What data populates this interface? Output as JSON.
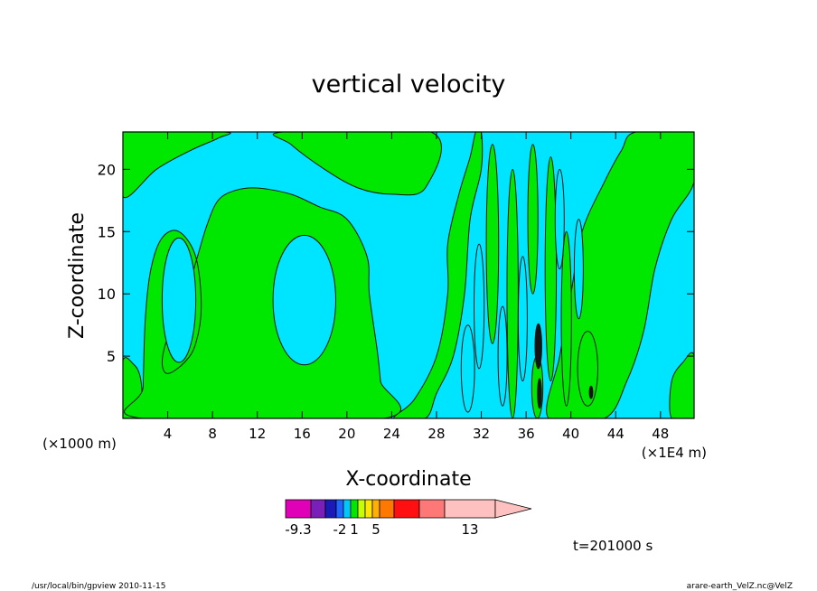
{
  "chart_data": {
    "type": "heatmap",
    "title": "vertical velocity",
    "xlabel": "X-coordinate",
    "ylabel": "Z-coordinate",
    "x_unit_left": "(×1000 m)",
    "x_unit_right": "(×1E4 m)",
    "xlim": [
      0,
      51
    ],
    "ylim": [
      0,
      23
    ],
    "x_ticks": [
      {
        "value": 4,
        "label": "4"
      },
      {
        "value": 8,
        "label": "8"
      },
      {
        "value": 12,
        "label": "12"
      },
      {
        "value": 16,
        "label": "16"
      },
      {
        "value": 20,
        "label": "20"
      },
      {
        "value": 24,
        "label": "24"
      },
      {
        "value": 28,
        "label": "28"
      },
      {
        "value": 32,
        "label": "32"
      },
      {
        "value": 36,
        "label": "36"
      },
      {
        "value": 40,
        "label": "40"
      },
      {
        "value": 44,
        "label": "44"
      },
      {
        "value": 48,
        "label": "48"
      }
    ],
    "y_ticks": [
      {
        "value": 5,
        "label": "5"
      },
      {
        "value": 10,
        "label": "10"
      },
      {
        "value": 15,
        "label": "15"
      },
      {
        "value": 20,
        "label": "20"
      }
    ],
    "colors": {
      "cyan": "#00e5ff",
      "green": "#00e800",
      "dark": "#141414",
      "line": "#111111"
    },
    "background_region": "cyan",
    "regions": [
      {
        "name": "green-left-top",
        "color": "green",
        "points": [
          [
            0,
            17.8
          ],
          [
            3,
            20
          ],
          [
            6,
            21.5
          ],
          [
            8.5,
            22.5
          ],
          [
            9,
            23
          ],
          [
            0,
            23
          ]
        ]
      },
      {
        "name": "green-top-mid",
        "color": "green",
        "points": [
          [
            14.3,
            23
          ],
          [
            15,
            22
          ],
          [
            18,
            20
          ],
          [
            21,
            18.5
          ],
          [
            24,
            18
          ],
          [
            27,
            18.5
          ],
          [
            27.5,
            23
          ]
        ]
      },
      {
        "name": "green-left-arm",
        "color": "green",
        "points": [
          [
            0,
            4.6
          ],
          [
            1,
            4.3
          ],
          [
            1.5,
            3.5
          ],
          [
            1.7,
            2
          ],
          [
            1.6,
            0
          ],
          [
            0,
            0
          ]
        ]
      },
      {
        "name": "green-main",
        "color": "green",
        "points": [
          [
            1.7,
            0
          ],
          [
            1.8,
            2.5
          ],
          [
            2,
            8
          ],
          [
            2.5,
            12
          ],
          [
            3.5,
            14.5
          ],
          [
            5,
            15
          ],
          [
            6.5,
            13
          ],
          [
            7,
            9
          ],
          [
            6.5,
            6
          ],
          [
            5.5,
            4.5
          ],
          [
            4,
            3.6
          ],
          [
            3.5,
            4.5
          ],
          [
            4,
            6.5
          ],
          [
            5.5,
            9.5
          ],
          [
            6.5,
            12.5
          ],
          [
            7.5,
            15.5
          ],
          [
            8.5,
            17.5
          ],
          [
            10,
            18.3
          ],
          [
            12,
            18.5
          ],
          [
            15,
            18
          ],
          [
            17.5,
            17
          ],
          [
            20,
            16
          ],
          [
            21.8,
            13
          ],
          [
            22,
            10
          ],
          [
            22.7,
            5.5
          ],
          [
            23,
            3
          ],
          [
            23.3,
            0
          ]
        ]
      },
      {
        "name": "green-right-band",
        "color": "green",
        "points": [
          [
            24.2,
            0
          ],
          [
            26,
            1.5
          ],
          [
            28,
            5
          ],
          [
            29,
            10
          ],
          [
            29,
            14
          ],
          [
            30,
            18
          ],
          [
            31,
            21
          ],
          [
            31.5,
            23
          ],
          [
            32,
            23
          ],
          [
            32,
            20
          ],
          [
            31,
            16
          ],
          [
            30.5,
            10
          ],
          [
            29.5,
            5
          ],
          [
            28,
            2
          ],
          [
            27,
            0
          ]
        ]
      },
      {
        "name": "green-right-wide",
        "color": "green",
        "points": [
          [
            38,
            0
          ],
          [
            39,
            5
          ],
          [
            40,
            10
          ],
          [
            41,
            15
          ],
          [
            43,
            19
          ],
          [
            44.5,
            21.5
          ],
          [
            45.8,
            23
          ],
          [
            51,
            23
          ],
          [
            51,
            19
          ],
          [
            49,
            16
          ],
          [
            47.5,
            12
          ],
          [
            46.5,
            7
          ],
          [
            45,
            3
          ],
          [
            43,
            0
          ]
        ]
      },
      {
        "name": "green-far-right",
        "color": "green",
        "points": [
          [
            49,
            0
          ],
          [
            49,
            3
          ],
          [
            50,
            4.5
          ],
          [
            51,
            5
          ],
          [
            51,
            0
          ]
        ]
      }
    ],
    "cells": [
      {
        "name": "cyan-cell-left",
        "color": "cyan",
        "cx": 5,
        "cy": 9.5,
        "rx": 1.5,
        "ry": 5
      },
      {
        "name": "cyan-cell-mid",
        "color": "cyan",
        "cx": 16.2,
        "cy": 9.5,
        "rx": 2.8,
        "ry": 5.2
      },
      {
        "name": "green-streak-1",
        "color": "green",
        "cx": 33,
        "cy": 14,
        "rx": 0.55,
        "ry": 8
      },
      {
        "name": "green-streak-2",
        "color": "green",
        "cx": 34.8,
        "cy": 10,
        "rx": 0.5,
        "ry": 10
      },
      {
        "name": "green-streak-3",
        "color": "green",
        "cx": 36.6,
        "cy": 16,
        "rx": 0.45,
        "ry": 6
      },
      {
        "name": "green-streak-4",
        "color": "green",
        "cx": 38.2,
        "cy": 12,
        "rx": 0.5,
        "ry": 9
      },
      {
        "name": "green-streak-5",
        "color": "green",
        "cx": 39.6,
        "cy": 8,
        "rx": 0.45,
        "ry": 7
      },
      {
        "name": "green-streak-6",
        "color": "green",
        "cx": 41.5,
        "cy": 4,
        "rx": 0.9,
        "ry": 3
      },
      {
        "name": "green-streak-7",
        "color": "green",
        "cx": 37,
        "cy": 2.5,
        "rx": 0.5,
        "ry": 2.5
      },
      {
        "name": "cyan-streak-1",
        "color": "cyan",
        "cx": 30.8,
        "cy": 4,
        "rx": 0.6,
        "ry": 3.5
      },
      {
        "name": "cyan-streak-2",
        "color": "cyan",
        "cx": 31.8,
        "cy": 9,
        "rx": 0.45,
        "ry": 5
      },
      {
        "name": "cyan-streak-3",
        "color": "cyan",
        "cx": 33.9,
        "cy": 5,
        "rx": 0.4,
        "ry": 4
      },
      {
        "name": "cyan-streak-4",
        "color": "cyan",
        "cx": 35.7,
        "cy": 8,
        "rx": 0.4,
        "ry": 5
      },
      {
        "name": "cyan-streak-5",
        "color": "cyan",
        "cx": 39,
        "cy": 16,
        "rx": 0.4,
        "ry": 4
      },
      {
        "name": "cyan-streak-6",
        "color": "cyan",
        "cx": 40.7,
        "cy": 12,
        "rx": 0.4,
        "ry": 4
      },
      {
        "name": "dark-core",
        "color": "dark",
        "cx": 37.1,
        "cy": 5.8,
        "rx": 0.3,
        "ry": 1.8
      },
      {
        "name": "dark-core-low",
        "color": "dark",
        "cx": 37.2,
        "cy": 2,
        "rx": 0.18,
        "ry": 1.2
      },
      {
        "name": "dark-spot",
        "color": "dark",
        "cx": 41.8,
        "cy": 2.1,
        "rx": 0.15,
        "ry": 0.5
      }
    ],
    "colorbar": {
      "colors": [
        "#e000b8",
        "#7a20b8",
        "#1a1ab8",
        "#1e66ff",
        "#00c8ff",
        "#00e800",
        "#c8ff00",
        "#ffe600",
        "#ffb000",
        "#ff7800",
        "#ff1010",
        "#ff7878",
        "#ffc0c0"
      ],
      "labels": [
        {
          "index": 0,
          "text": "-9.3"
        },
        {
          "index": 3,
          "text": "-2"
        },
        {
          "index": 5,
          "text": "1"
        },
        {
          "index": 8,
          "text": "5"
        },
        {
          "index": 12,
          "text": "13"
        }
      ]
    },
    "time_label": "t=201000 s"
  },
  "footer": {
    "left": "/usr/local/bin/gpview   2010-11-15",
    "right": "arare-earth_VelZ.nc@VelZ"
  }
}
